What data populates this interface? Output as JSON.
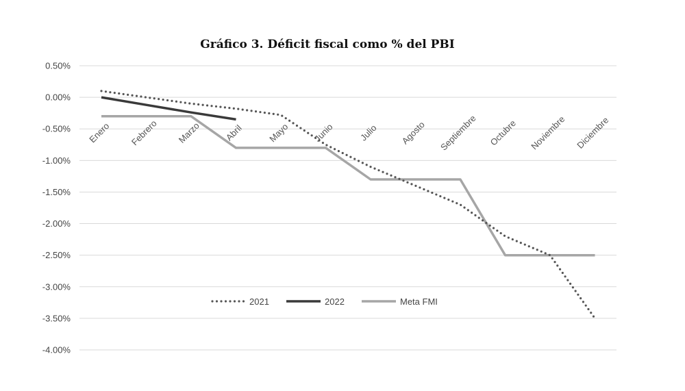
{
  "chart_data": {
    "type": "line",
    "title": "Gráfico 3. Déficit fiscal como % del PBI",
    "xlabel": "",
    "ylabel": "",
    "categories": [
      "Enero",
      "Febrero",
      "Marzo",
      "Abril",
      "Mayo",
      "Junio",
      "Julio",
      "Agosto",
      "Septiembre",
      "Octubre",
      "Noviembre",
      "Diciembre"
    ],
    "y_ticks": [
      "0.50%",
      "0.00%",
      "-0.50%",
      "-1.00%",
      "-1.50%",
      "-2.00%",
      "-2.50%",
      "-3.00%",
      "-3.50%",
      "-4.00%"
    ],
    "ylim": [
      -4.0,
      0.5
    ],
    "grid": true,
    "legend_position": "bottom-center",
    "series": [
      {
        "name": "2021",
        "style": "dotted",
        "color": "#555555",
        "values": [
          0.1,
          0.0,
          -0.1,
          -0.18,
          -0.28,
          -0.75,
          -1.1,
          -1.4,
          -1.7,
          -2.2,
          -2.5,
          -3.5
        ]
      },
      {
        "name": "2022",
        "style": "solid",
        "color": "#3a3a3a",
        "values": [
          0.0,
          -0.12,
          -0.24,
          -0.35,
          null,
          null,
          null,
          null,
          null,
          null,
          null,
          null
        ]
      },
      {
        "name": "Meta FMI",
        "style": "solid",
        "color": "#a6a6a6",
        "values": [
          -0.3,
          -0.3,
          -0.3,
          -0.8,
          -0.8,
          -0.8,
          -1.3,
          -1.3,
          -1.3,
          -2.5,
          -2.5,
          -2.5
        ]
      }
    ]
  }
}
